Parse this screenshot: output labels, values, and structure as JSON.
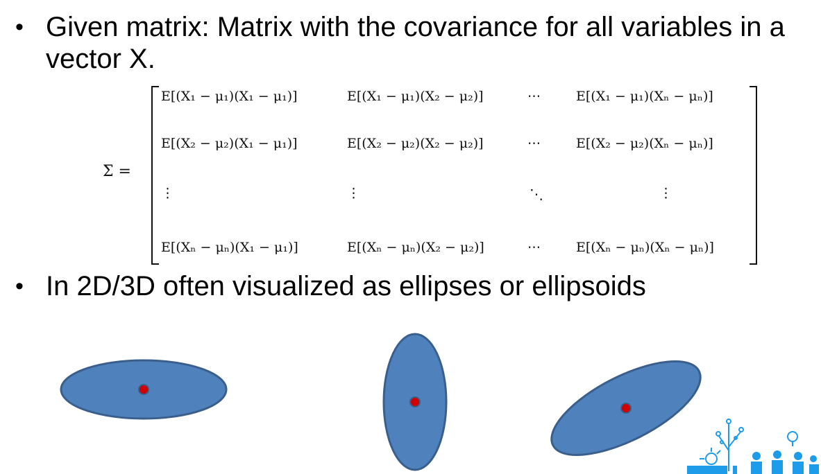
{
  "bullets": [
    {
      "symbol": "•",
      "text": "Given matrix: Matrix with the covariance for all variables in a vector X."
    },
    {
      "symbol": "•",
      "text": "In 2D/3D often visualized as ellipses or ellipsoids"
    }
  ],
  "matrix": {
    "lhs": "Σ =",
    "rows": [
      [
        "E[(X₁ − μ₁)(X₁ − μ₁)]",
        "E[(X₁ − μ₁)(X₂ − μ₂)]",
        "⋯",
        "E[(X₁ − μ₁)(Xₙ − μₙ)]"
      ],
      [
        "E[(X₂ − μ₂)(X₁ − μ₁)]",
        "E[(X₂ − μ₂)(X₂ − μ₂)]",
        "⋯",
        "E[(X₂ − μ₂)(Xₙ − μₙ)]"
      ],
      [
        "⋮",
        "⋮",
        "⋱",
        "⋮"
      ],
      [
        "E[(Xₙ − μₙ)(X₁ − μ₁)]",
        "E[(Xₙ − μₙ)(X₂ − μ₂)]",
        "⋯",
        "E[(Xₙ − μₙ)(Xₙ − μₙ)]"
      ]
    ]
  },
  "colors": {
    "ellipse_fill": "#4f81bd",
    "ellipse_stroke": "#3a5f8c",
    "center_dot": "#d10000",
    "logo_blue": "#1e9be9"
  },
  "illustrations": [
    {
      "name": "horizontal-ellipse"
    },
    {
      "name": "vertical-ellipse"
    },
    {
      "name": "tilted-ellipse"
    }
  ],
  "logo_icon": "tree-circuit-logo-icon"
}
